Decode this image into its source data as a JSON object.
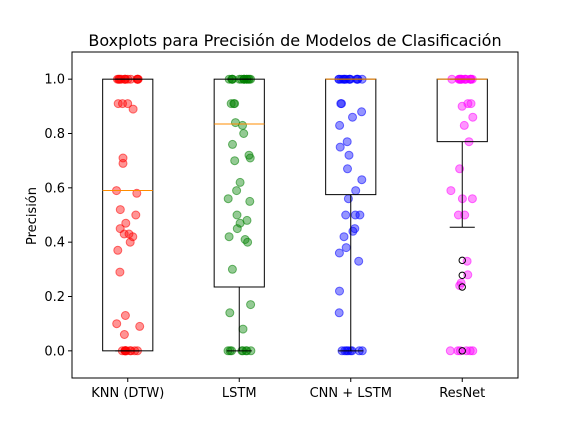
{
  "chart_data": {
    "type": "boxplot",
    "title": "Boxplots para Precisión de Modelos de Clasificación",
    "xlabel": "",
    "ylabel": "Precisión",
    "ylim": [
      -0.1,
      1.1
    ],
    "yticks": [
      "0.0",
      "0.2",
      "0.4",
      "0.6",
      "0.8",
      "1.0"
    ],
    "categories": [
      "KNN (DTW)",
      "LSTM",
      "CNN + LSTM",
      "ResNet"
    ],
    "grid": false,
    "colors": {
      "KNN (DTW)": "#ff0000",
      "LSTM": "#008000",
      "CNN + LSTM": "#0000ff",
      "ResNet": "#ff00ff",
      "median": "#ff8c00",
      "box": "#000000"
    },
    "boxes": [
      {
        "name": "KNN (DTW)",
        "q1": 0.0,
        "median": 0.59,
        "q3": 1.0,
        "whisker_low": 0.0,
        "whisker_high": 1.0,
        "outliers": []
      },
      {
        "name": "LSTM",
        "q1": 0.235,
        "median": 0.835,
        "q3": 1.0,
        "whisker_low": 0.0,
        "whisker_high": 1.0,
        "outliers": []
      },
      {
        "name": "CNN + LSTM",
        "q1": 0.575,
        "median": 1.0,
        "q3": 1.0,
        "whisker_low": 0.0,
        "whisker_high": 1.0,
        "outliers": []
      },
      {
        "name": "ResNet",
        "q1": 0.77,
        "median": 1.0,
        "q3": 1.0,
        "whisker_low": 0.455,
        "whisker_high": 1.0,
        "outliers": [
          0.333,
          0.278,
          0.235,
          0.0
        ]
      }
    ],
    "points": [
      {
        "name": "KNN (DTW)",
        "values": [
          1.0,
          1.0,
          1.0,
          1.0,
          1.0,
          1.0,
          1.0,
          1.0,
          1.0,
          1.0,
          1.0,
          1.0,
          1.0,
          1.0,
          0.91,
          0.91,
          0.91,
          0.89,
          0.71,
          0.69,
          0.59,
          0.58,
          0.52,
          0.5,
          0.47,
          0.45,
          0.43,
          0.43,
          0.42,
          0.4,
          0.37,
          0.29,
          0.13,
          0.1,
          0.09,
          0.06,
          0.0,
          0.0,
          0.0,
          0.0,
          0.0,
          0.0,
          0.0,
          0.0,
          0.0,
          0.0
        ]
      },
      {
        "name": "LSTM",
        "values": [
          1.0,
          1.0,
          1.0,
          1.0,
          1.0,
          1.0,
          1.0,
          1.0,
          1.0,
          1.0,
          1.0,
          1.0,
          1.0,
          1.0,
          0.91,
          0.91,
          0.91,
          0.84,
          0.83,
          0.8,
          0.76,
          0.72,
          0.71,
          0.7,
          0.62,
          0.59,
          0.56,
          0.55,
          0.5,
          0.48,
          0.47,
          0.45,
          0.42,
          0.41,
          0.4,
          0.3,
          0.17,
          0.14,
          0.08,
          0.0,
          0.0,
          0.0,
          0.0,
          0.0,
          0.0,
          0.0,
          0.0
        ]
      },
      {
        "name": "CNN + LSTM",
        "values": [
          1.0,
          1.0,
          1.0,
          1.0,
          1.0,
          1.0,
          1.0,
          1.0,
          1.0,
          1.0,
          1.0,
          1.0,
          1.0,
          1.0,
          0.91,
          0.91,
          0.88,
          0.86,
          0.83,
          0.77,
          0.75,
          0.72,
          0.67,
          0.63,
          0.59,
          0.56,
          0.5,
          0.5,
          0.5,
          0.45,
          0.44,
          0.42,
          0.38,
          0.36,
          0.33,
          0.22,
          0.14,
          0.0,
          0.0,
          0.0,
          0.0,
          0.0,
          0.0,
          0.0,
          0.0
        ]
      },
      {
        "name": "ResNet",
        "values": [
          1.0,
          1.0,
          1.0,
          1.0,
          1.0,
          1.0,
          1.0,
          1.0,
          1.0,
          1.0,
          1.0,
          1.0,
          1.0,
          1.0,
          0.91,
          0.91,
          0.9,
          0.86,
          0.83,
          0.77,
          0.67,
          0.59,
          0.56,
          0.56,
          0.5,
          0.5,
          0.33,
          0.28,
          0.25,
          0.24,
          0.0,
          0.0,
          0.0,
          0.0,
          0.0,
          0.0
        ]
      }
    ]
  }
}
